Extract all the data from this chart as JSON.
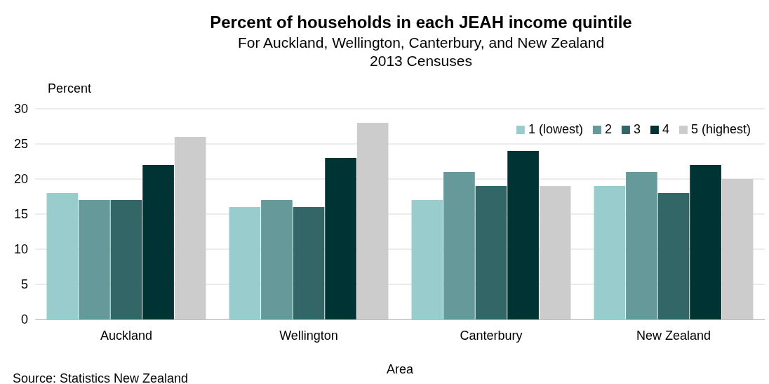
{
  "chart_data": {
    "type": "bar",
    "title": "Percent of households in each JEAH income quintile",
    "subtitle": "For Auckland,  Wellington, Canterbury, and New Zealand\n2013 Censuses",
    "xlabel": "Area",
    "ylabel": "Percent",
    "categories": [
      "Auckland",
      "Wellington",
      "Canterbury",
      "New Zealand"
    ],
    "series": [
      {
        "name": "1 (lowest)",
        "color": "#99cccc",
        "values": [
          18,
          16,
          17,
          19
        ]
      },
      {
        "name": "2",
        "color": "#669999",
        "values": [
          17,
          17,
          21,
          21
        ]
      },
      {
        "name": "3",
        "color": "#336666",
        "values": [
          17,
          16,
          19,
          18
        ]
      },
      {
        "name": "4",
        "color": "#003333",
        "values": [
          22,
          23,
          24,
          22
        ]
      },
      {
        "name": "5 (highest)",
        "color": "#cccccc",
        "values": [
          26,
          28,
          19,
          20
        ]
      }
    ],
    "ylim": [
      0,
      30
    ],
    "yticks": [
      0,
      5,
      10,
      15,
      20,
      25,
      30
    ],
    "grid": "y",
    "legend": "top right",
    "annotations": [
      "Source: Statistics New Zealand"
    ]
  }
}
